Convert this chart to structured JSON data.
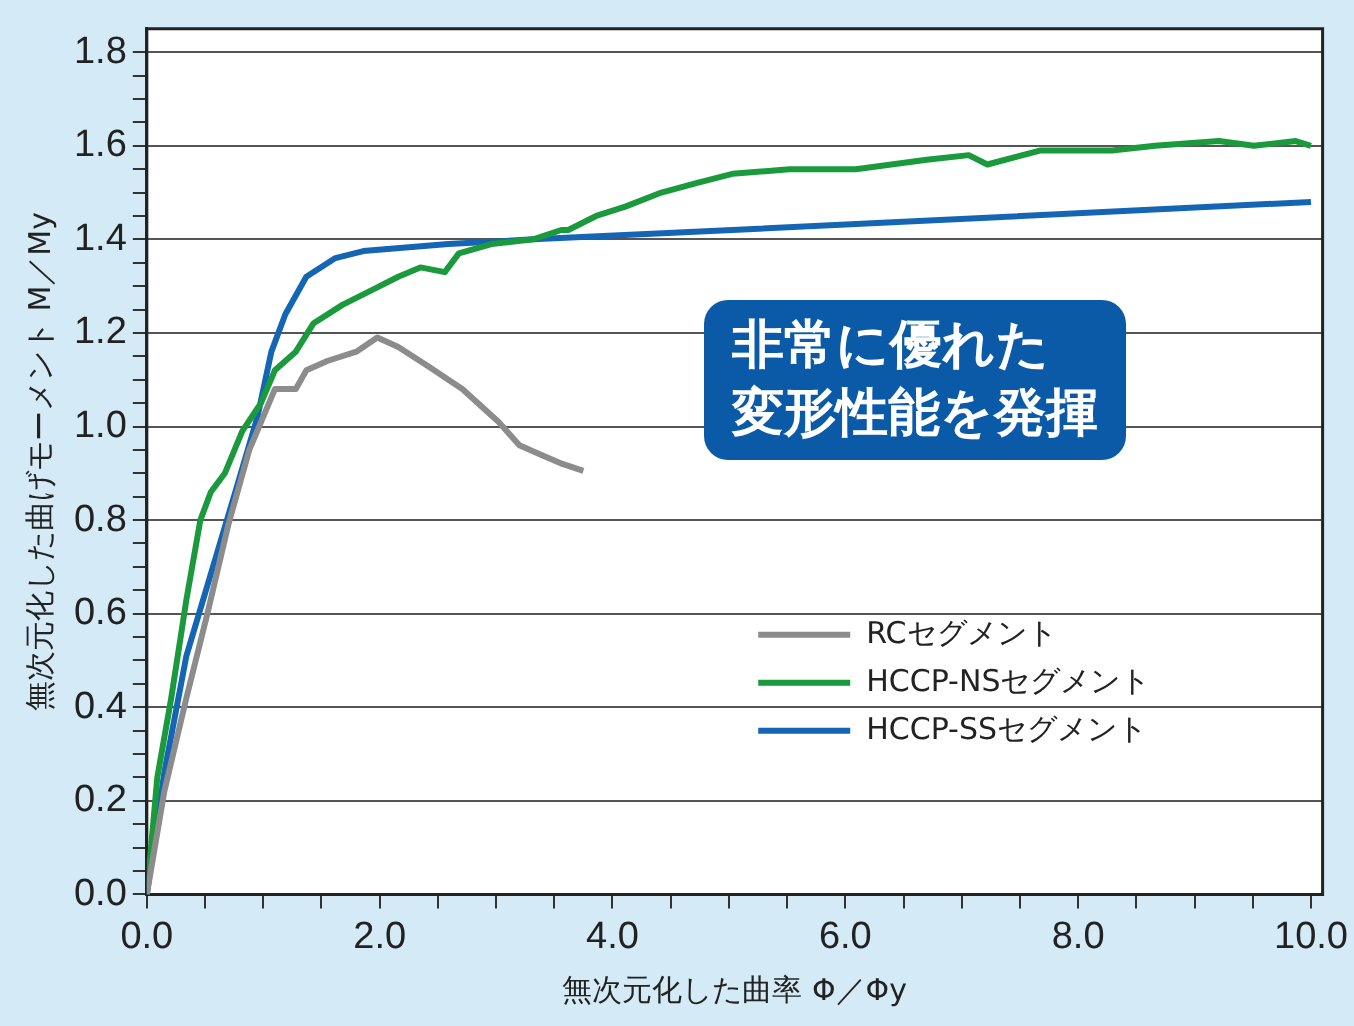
{
  "chart_data": {
    "type": "line",
    "xlabel": "無次元化した曲率 Φ／Φy",
    "ylabel": "無次元化した曲げモーメント M／My",
    "xlim": [
      0,
      10.1
    ],
    "ylim": [
      0,
      1.85
    ],
    "xticks": [
      {
        "value": 0,
        "label": "0.0"
      },
      {
        "value": 0.5,
        "label": null
      },
      {
        "value": 1,
        "label": null
      },
      {
        "value": 1.5,
        "label": null
      },
      {
        "value": 2,
        "label": "2.0"
      },
      {
        "value": 2.5,
        "label": null
      },
      {
        "value": 3,
        "label": null
      },
      {
        "value": 3.5,
        "label": null
      },
      {
        "value": 4,
        "label": "4.0"
      },
      {
        "value": 4.5,
        "label": null
      },
      {
        "value": 5,
        "label": null
      },
      {
        "value": 5.5,
        "label": null
      },
      {
        "value": 6,
        "label": "6.0"
      },
      {
        "value": 6.5,
        "label": null
      },
      {
        "value": 7,
        "label": null
      },
      {
        "value": 7.5,
        "label": null
      },
      {
        "value": 8,
        "label": "8.0"
      },
      {
        "value": 8.5,
        "label": null
      },
      {
        "value": 9,
        "label": null
      },
      {
        "value": 9.5,
        "label": null
      },
      {
        "value": 10,
        "label": "10.0"
      }
    ],
    "yticks": [
      {
        "value": 0,
        "label": "0.0"
      },
      {
        "value": 0.05,
        "label": null
      },
      {
        "value": 0.1,
        "label": null
      },
      {
        "value": 0.15,
        "label": null
      },
      {
        "value": 0.2,
        "label": "0.2"
      },
      {
        "value": 0.25,
        "label": null
      },
      {
        "value": 0.3,
        "label": null
      },
      {
        "value": 0.35,
        "label": null
      },
      {
        "value": 0.4,
        "label": "0.4"
      },
      {
        "value": 0.45,
        "label": null
      },
      {
        "value": 0.5,
        "label": null
      },
      {
        "value": 0.55,
        "label": null
      },
      {
        "value": 0.6,
        "label": "0.6"
      },
      {
        "value": 0.65,
        "label": null
      },
      {
        "value": 0.7,
        "label": null
      },
      {
        "value": 0.75,
        "label": null
      },
      {
        "value": 0.8,
        "label": "0.8"
      },
      {
        "value": 0.85,
        "label": null
      },
      {
        "value": 0.9,
        "label": null
      },
      {
        "value": 0.95,
        "label": null
      },
      {
        "value": 1,
        "label": "1.0"
      },
      {
        "value": 1.05,
        "label": null
      },
      {
        "value": 1.1,
        "label": null
      },
      {
        "value": 1.15,
        "label": null
      },
      {
        "value": 1.2,
        "label": "1.2"
      },
      {
        "value": 1.25,
        "label": null
      },
      {
        "value": 1.3,
        "label": null
      },
      {
        "value": 1.35,
        "label": null
      },
      {
        "value": 1.4,
        "label": "1.4"
      },
      {
        "value": 1.45,
        "label": null
      },
      {
        "value": 1.5,
        "label": null
      },
      {
        "value": 1.55,
        "label": null
      },
      {
        "value": 1.6,
        "label": "1.6"
      },
      {
        "value": 1.65,
        "label": null
      },
      {
        "value": 1.7,
        "label": null
      },
      {
        "value": 1.75,
        "label": null
      },
      {
        "value": 1.8,
        "label": "1.8"
      }
    ],
    "grid": "y",
    "legend": "right",
    "marker": "none",
    "line_style": "solid",
    "annotations": [
      "非常に優れた",
      "変形性能を発揮"
    ],
    "series": [
      {
        "name": "RCセグメント",
        "color": "#8c8c8c",
        "x": [
          0,
          0.15,
          0.34,
          0.52,
          0.7,
          0.88,
          1.1,
          1.19,
          1.28,
          1.37,
          1.55,
          1.8,
          1.98,
          2.16,
          2.41,
          2.71,
          3.02,
          3.2,
          3.38,
          3.57,
          3.75
        ],
        "values": [
          0,
          0.22,
          0.42,
          0.6,
          0.79,
          0.95,
          1.08,
          1.08,
          1.08,
          1.12,
          1.14,
          1.16,
          1.19,
          1.17,
          1.13,
          1.08,
          1.01,
          0.96,
          0.94,
          0.92,
          0.905
        ]
      },
      {
        "name": "HCCP-NSセグメント",
        "color": "#1a9a3c",
        "x": [
          0,
          0.09,
          0.21,
          0.34,
          0.46,
          0.55,
          0.67,
          0.82,
          0.98,
          1.1,
          1.28,
          1.43,
          1.68,
          1.92,
          2.16,
          2.35,
          2.56,
          2.68,
          2.96,
          3.32,
          3.56,
          3.62,
          3.86,
          4.11,
          4.42,
          4.72,
          5.03,
          5.52,
          5.6,
          6.09,
          6.7,
          7.06,
          7.22,
          7.68,
          8.29,
          8.66,
          9.21,
          9.51,
          9.87,
          10
        ],
        "values": [
          0,
          0.25,
          0.42,
          0.63,
          0.8,
          0.86,
          0.9,
          0.99,
          1.05,
          1.12,
          1.16,
          1.22,
          1.26,
          1.29,
          1.32,
          1.34,
          1.33,
          1.37,
          1.39,
          1.4,
          1.42,
          1.42,
          1.45,
          1.47,
          1.5,
          1.52,
          1.54,
          1.55,
          1.55,
          1.55,
          1.57,
          1.58,
          1.56,
          1.59,
          1.59,
          1.6,
          1.61,
          1.6,
          1.61,
          1.6
        ]
      },
      {
        "name": "HCCP-SSセグメント",
        "color": "#1466b4",
        "x": [
          0,
          0.15,
          0.34,
          0.52,
          0.76,
          0.95,
          1.07,
          1.19,
          1.37,
          1.62,
          1.86,
          2.59,
          3.32,
          5.03,
          10
        ],
        "values": [
          0,
          0.26,
          0.51,
          0.66,
          0.86,
          1.02,
          1.16,
          1.24,
          1.32,
          1.36,
          1.375,
          1.39,
          1.4,
          1.42,
          1.48
        ]
      }
    ]
  }
}
